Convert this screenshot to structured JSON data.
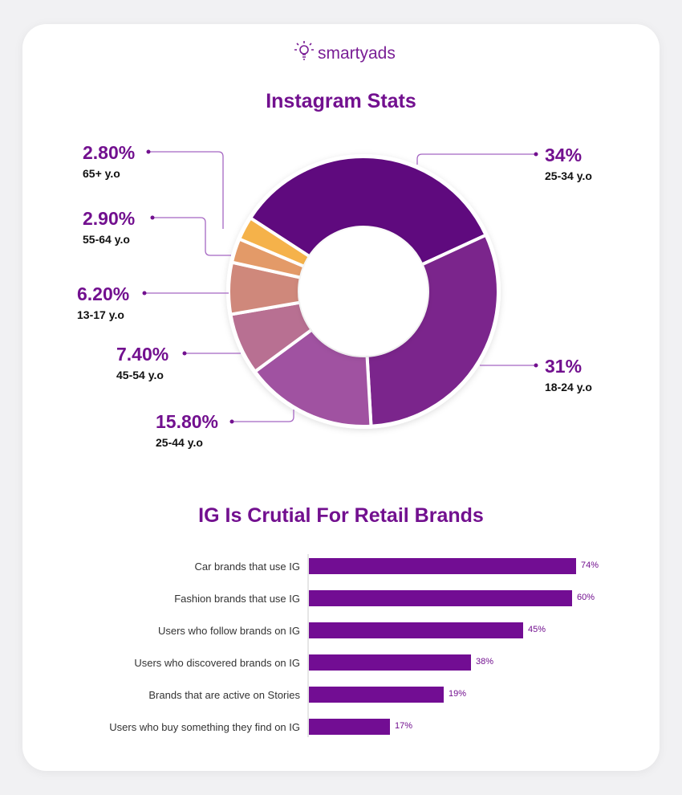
{
  "brand": {
    "name": "smartyads",
    "logo_icon": "lightbulb-icon"
  },
  "chart_data": [
    {
      "type": "pie",
      "subtype": "donut",
      "title": "Instagram Stats",
      "slices": [
        {
          "label": "25-34 y.o",
          "value": 34,
          "display": "34%",
          "color": "#5f0a7e"
        },
        {
          "label": "18-24 y.o",
          "value": 31,
          "display": "31%",
          "color": "#7b258c"
        },
        {
          "label": "25-44 y.o",
          "value": 15.8,
          "display": "15.80%",
          "color": "#a052a1"
        },
        {
          "label": "45-54 y.o",
          "value": 7.4,
          "display": "7.40%",
          "color": "#b87092"
        },
        {
          "label": "13-17 y.o",
          "value": 6.2,
          "display": "6.20%",
          "color": "#cf887b"
        },
        {
          "label": "55-64 y.o",
          "value": 2.9,
          "display": "2.90%",
          "color": "#e39a68"
        },
        {
          "label": "65+ y.o",
          "value": 2.8,
          "display": "2.80%",
          "color": "#f5b24a"
        }
      ]
    },
    {
      "type": "bar",
      "orientation": "horizontal",
      "title": "IG Is Crutial For Retail Brands",
      "categories": [
        "Car brands that use IG",
        "Fashion brands that use IG",
        "Users who follow brands on IG",
        "Users who discovered brands on IG",
        "Brands that are active on Stories",
        "Users who buy something they find on IG"
      ],
      "values": [
        74,
        60,
        45,
        38,
        19,
        17
      ],
      "labels": [
        "74%",
        "60%",
        "45%",
        "38%",
        "19%",
        "17%"
      ],
      "color": "#720d93"
    }
  ]
}
